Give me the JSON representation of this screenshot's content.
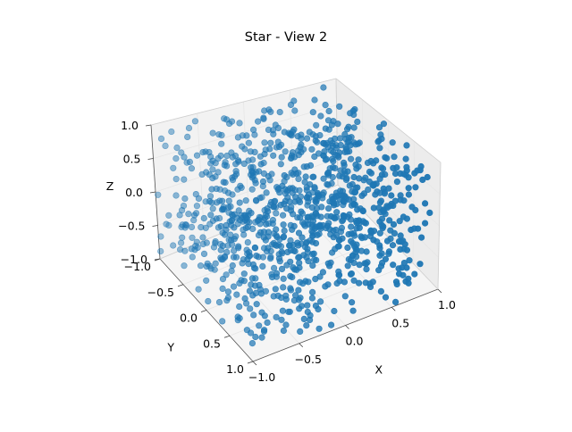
{
  "figure": {
    "title": "Star - View 2"
  },
  "chart_data": {
    "type": "scatter",
    "projection": "3d",
    "title": "Star - View 2",
    "xlabel": "X",
    "ylabel": "Y",
    "zlabel": "Z",
    "xlim": [
      -1,
      1
    ],
    "ylim": [
      -1,
      1
    ],
    "zlim": [
      -1,
      1
    ],
    "x_ticks": [
      "−1.0",
      "−0.5",
      "0.0",
      "0.5",
      "1.0"
    ],
    "y_ticks": [
      "−1.0",
      "−0.5",
      "0.0",
      "0.5",
      "1.0"
    ],
    "z_ticks": [
      "−1.0",
      "−0.5",
      "0.0",
      "0.5",
      "1.0"
    ],
    "grid": true,
    "series": [
      {
        "color": "#1f77b4",
        "point_count": 1000,
        "distribution": "uniform in cube [-1,1]^3"
      }
    ],
    "colors": {
      "points": "#1f77b4",
      "pane": "#f2f2f2",
      "grid": "#e6e6e6"
    }
  }
}
